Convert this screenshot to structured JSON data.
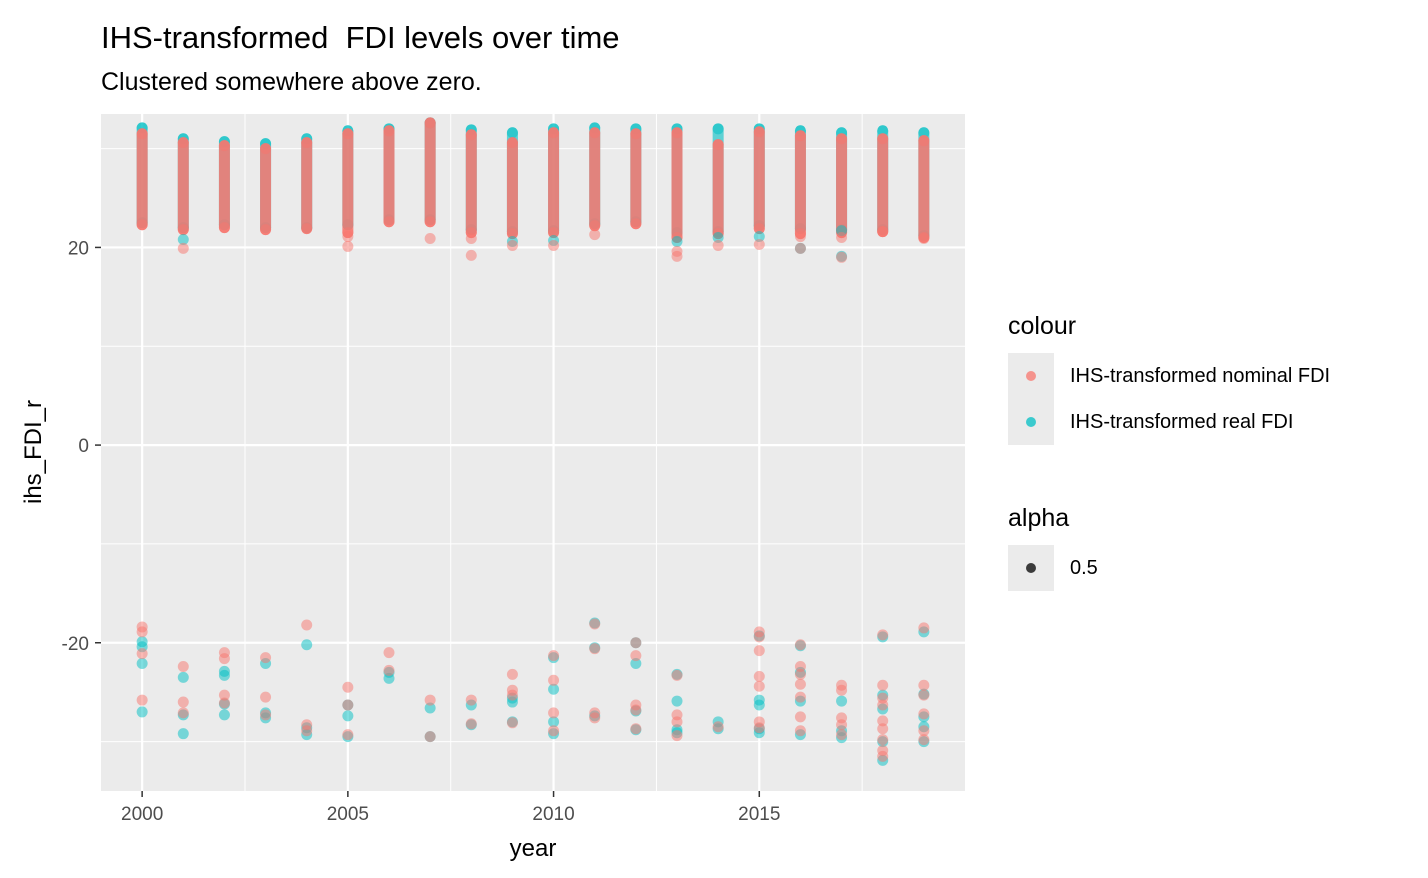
{
  "chart_data": {
    "type": "scatter",
    "title": "IHS-transformed  FDI levels over time",
    "subtitle": "Clustered somewhere above zero.",
    "xlabel": "year",
    "ylabel": "ihs_FDI_r",
    "xlim": [
      1999.0,
      2020.0
    ],
    "ylim": [
      -35.0,
      33.5
    ],
    "x_ticks": [
      2000,
      2005,
      2010,
      2015
    ],
    "x_tick_labels": [
      "2000",
      "2005",
      "2010",
      "2015"
    ],
    "y_ticks": [
      -20,
      0,
      20
    ],
    "y_tick_labels": [
      "-20",
      "0",
      "20"
    ],
    "grid": true,
    "legend_position": "right",
    "colors": {
      "nominal": "#F8766D",
      "real": "#00BFC4",
      "panel": "#EBEBEB",
      "grid": "#FFFFFF"
    },
    "point_alpha": 0.5,
    "series": [
      {
        "name": "IHS-transformed nominal FDI",
        "color": "#F8766D",
        "upper_band": [
          [
            2000,
            22.3,
            31.5
          ],
          [
            2001,
            21.8,
            30.6
          ],
          [
            2002,
            22.0,
            30.3
          ],
          [
            2003,
            21.8,
            30.0
          ],
          [
            2004,
            21.9,
            30.6
          ],
          [
            2005,
            21.5,
            31.5
          ],
          [
            2006,
            22.6,
            31.8
          ],
          [
            2007,
            22.6,
            32.6
          ],
          [
            2008,
            21.5,
            31.4
          ],
          [
            2009,
            21.4,
            30.6
          ],
          [
            2010,
            21.5,
            31.6
          ],
          [
            2011,
            22.2,
            31.6
          ],
          [
            2012,
            22.4,
            31.5
          ],
          [
            2013,
            21.0,
            31.6
          ],
          [
            2014,
            21.4,
            30.4
          ],
          [
            2015,
            21.9,
            31.7
          ],
          [
            2016,
            21.4,
            31.3
          ],
          [
            2017,
            21.5,
            31.0
          ],
          [
            2018,
            21.6,
            31.0
          ],
          [
            2019,
            21.0,
            30.8
          ]
        ],
        "points": [
          [
            2000,
            -18.4
          ],
          [
            2000,
            -18.9
          ],
          [
            2000,
            -21.1
          ],
          [
            2000,
            -25.8
          ],
          [
            2001,
            19.9
          ],
          [
            2001,
            -22.4
          ],
          [
            2001,
            -26.0
          ],
          [
            2001,
            -27.1
          ],
          [
            2002,
            -21.0
          ],
          [
            2002,
            -21.6
          ],
          [
            2002,
            -25.3
          ],
          [
            2002,
            -26.1
          ],
          [
            2003,
            -21.5
          ],
          [
            2003,
            -25.5
          ],
          [
            2003,
            -27.3
          ],
          [
            2004,
            -18.2
          ],
          [
            2004,
            -28.3
          ],
          [
            2004,
            -28.9
          ],
          [
            2005,
            20.1
          ],
          [
            2005,
            21.1
          ],
          [
            2005,
            -24.5
          ],
          [
            2005,
            -26.3
          ],
          [
            2005,
            -29.3
          ],
          [
            2006,
            -21.0
          ],
          [
            2006,
            -22.8
          ],
          [
            2007,
            20.9
          ],
          [
            2007,
            -25.8
          ],
          [
            2007,
            -29.5
          ],
          [
            2008,
            19.2
          ],
          [
            2008,
            20.9
          ],
          [
            2008,
            -25.8
          ],
          [
            2008,
            -28.2
          ],
          [
            2009,
            20.2
          ],
          [
            2009,
            -23.2
          ],
          [
            2009,
            -24.8
          ],
          [
            2009,
            -25.3
          ],
          [
            2009,
            -28.1
          ],
          [
            2010,
            20.2
          ],
          [
            2010,
            -21.3
          ],
          [
            2010,
            -23.8
          ],
          [
            2010,
            -27.1
          ],
          [
            2010,
            -28.9
          ],
          [
            2011,
            21.3
          ],
          [
            2011,
            -18.1
          ],
          [
            2011,
            -20.6
          ],
          [
            2011,
            -27.1
          ],
          [
            2011,
            -27.6
          ],
          [
            2012,
            -20.0
          ],
          [
            2012,
            -21.3
          ],
          [
            2012,
            -26.3
          ],
          [
            2012,
            -26.8
          ],
          [
            2012,
            -28.7
          ],
          [
            2013,
            19.1
          ],
          [
            2013,
            19.6
          ],
          [
            2013,
            -23.3
          ],
          [
            2013,
            -27.3
          ],
          [
            2013,
            -28.0
          ],
          [
            2013,
            -29.4
          ],
          [
            2014,
            20.2
          ],
          [
            2014,
            -28.5
          ],
          [
            2015,
            20.3
          ],
          [
            2015,
            -18.9
          ],
          [
            2015,
            -19.4
          ],
          [
            2015,
            -20.8
          ],
          [
            2015,
            -23.4
          ],
          [
            2015,
            -24.4
          ],
          [
            2015,
            -28.0
          ],
          [
            2015,
            -28.6
          ],
          [
            2016,
            19.9
          ],
          [
            2016,
            21.1
          ],
          [
            2016,
            -20.2
          ],
          [
            2016,
            -22.4
          ],
          [
            2016,
            -23.2
          ],
          [
            2016,
            -24.2
          ],
          [
            2016,
            -25.5
          ],
          [
            2016,
            -27.5
          ],
          [
            2016,
            -28.9
          ],
          [
            2017,
            19.0
          ],
          [
            2017,
            21.0
          ],
          [
            2017,
            -24.3
          ],
          [
            2017,
            -24.8
          ],
          [
            2017,
            -27.6
          ],
          [
            2017,
            -28.3
          ],
          [
            2017,
            -29.3
          ],
          [
            2018,
            21.6
          ],
          [
            2018,
            -19.2
          ],
          [
            2018,
            -24.3
          ],
          [
            2018,
            -25.6
          ],
          [
            2018,
            -26.3
          ],
          [
            2018,
            -27.9
          ],
          [
            2018,
            -28.7
          ],
          [
            2018,
            -29.8
          ],
          [
            2018,
            -30.9
          ],
          [
            2018,
            -31.5
          ],
          [
            2019,
            20.9
          ],
          [
            2019,
            -18.5
          ],
          [
            2019,
            -24.3
          ],
          [
            2019,
            -25.3
          ],
          [
            2019,
            -27.2
          ],
          [
            2019,
            -28.9
          ],
          [
            2019,
            -29.8
          ]
        ]
      },
      {
        "name": "IHS-transformed real FDI",
        "color": "#00BFC4",
        "upper_band": [
          [
            2000,
            22.5,
            32.1
          ],
          [
            2001,
            22.0,
            31.0
          ],
          [
            2002,
            22.3,
            30.7
          ],
          [
            2003,
            22.0,
            30.5
          ],
          [
            2004,
            22.0,
            31.0
          ],
          [
            2005,
            22.3,
            31.8
          ],
          [
            2006,
            22.8,
            32.0
          ],
          [
            2007,
            22.8,
            32.6
          ],
          [
            2008,
            21.8,
            31.9
          ],
          [
            2009,
            21.6,
            31.6
          ],
          [
            2010,
            21.7,
            32.0
          ],
          [
            2011,
            22.4,
            32.1
          ],
          [
            2012,
            22.6,
            32.0
          ],
          [
            2013,
            21.5,
            32.0
          ],
          [
            2014,
            21.6,
            32.0
          ],
          [
            2015,
            22.2,
            32.0
          ],
          [
            2016,
            21.9,
            31.8
          ],
          [
            2017,
            21.8,
            31.6
          ],
          [
            2018,
            21.8,
            31.8
          ],
          [
            2019,
            21.2,
            31.6
          ]
        ],
        "points": [
          [
            2000,
            -19.9
          ],
          [
            2000,
            -20.4
          ],
          [
            2000,
            -22.1
          ],
          [
            2000,
            -27.0
          ],
          [
            2001,
            20.8
          ],
          [
            2001,
            -23.5
          ],
          [
            2001,
            -27.3
          ],
          [
            2001,
            -29.2
          ],
          [
            2002,
            -22.9
          ],
          [
            2002,
            -23.3
          ],
          [
            2002,
            -26.2
          ],
          [
            2002,
            -27.3
          ],
          [
            2003,
            -22.1
          ],
          [
            2003,
            -27.1
          ],
          [
            2003,
            -27.6
          ],
          [
            2004,
            -20.2
          ],
          [
            2004,
            -28.6
          ],
          [
            2004,
            -29.3
          ],
          [
            2005,
            -26.3
          ],
          [
            2005,
            -27.4
          ],
          [
            2005,
            -29.5
          ],
          [
            2006,
            -23.0
          ],
          [
            2006,
            -23.6
          ],
          [
            2007,
            -26.6
          ],
          [
            2007,
            -29.5
          ],
          [
            2008,
            -26.3
          ],
          [
            2008,
            -28.3
          ],
          [
            2009,
            20.6
          ],
          [
            2009,
            -25.6
          ],
          [
            2009,
            -26.0
          ],
          [
            2009,
            -28.0
          ],
          [
            2010,
            20.7
          ],
          [
            2010,
            -21.5
          ],
          [
            2010,
            -24.7
          ],
          [
            2010,
            -28.0
          ],
          [
            2010,
            -29.2
          ],
          [
            2011,
            -18.0
          ],
          [
            2011,
            -20.5
          ],
          [
            2011,
            -27.4
          ],
          [
            2012,
            -20.0
          ],
          [
            2012,
            -22.1
          ],
          [
            2012,
            -26.9
          ],
          [
            2012,
            -28.8
          ],
          [
            2013,
            20.6
          ],
          [
            2013,
            -23.2
          ],
          [
            2013,
            -25.9
          ],
          [
            2013,
            -28.8
          ],
          [
            2013,
            -29.1
          ],
          [
            2014,
            21.0
          ],
          [
            2014,
            -28.0
          ],
          [
            2014,
            -28.7
          ],
          [
            2015,
            21.1
          ],
          [
            2015,
            -19.3
          ],
          [
            2015,
            -25.8
          ],
          [
            2015,
            -26.3
          ],
          [
            2015,
            -28.7
          ],
          [
            2015,
            -29.1
          ],
          [
            2016,
            19.9
          ],
          [
            2016,
            -20.3
          ],
          [
            2016,
            -23.0
          ],
          [
            2016,
            -25.9
          ],
          [
            2016,
            -29.3
          ],
          [
            2017,
            19.1
          ],
          [
            2017,
            21.7
          ],
          [
            2017,
            -25.9
          ],
          [
            2017,
            -28.9
          ],
          [
            2017,
            -29.6
          ],
          [
            2018,
            -19.4
          ],
          [
            2018,
            -25.3
          ],
          [
            2018,
            -26.7
          ],
          [
            2018,
            -30.0
          ],
          [
            2018,
            -31.9
          ],
          [
            2019,
            -18.9
          ],
          [
            2019,
            -25.2
          ],
          [
            2019,
            -27.5
          ],
          [
            2019,
            -28.5
          ],
          [
            2019,
            -30.0
          ]
        ]
      }
    ]
  },
  "legend": {
    "colour_title": "colour",
    "colour_items": [
      {
        "label": "IHS-transformed nominal FDI",
        "color": "#F8766D"
      },
      {
        "label": "IHS-transformed real FDI",
        "color": "#00BFC4"
      }
    ],
    "alpha_title": "alpha",
    "alpha_items": [
      {
        "label": "0.5",
        "color": "#000000"
      }
    ]
  }
}
